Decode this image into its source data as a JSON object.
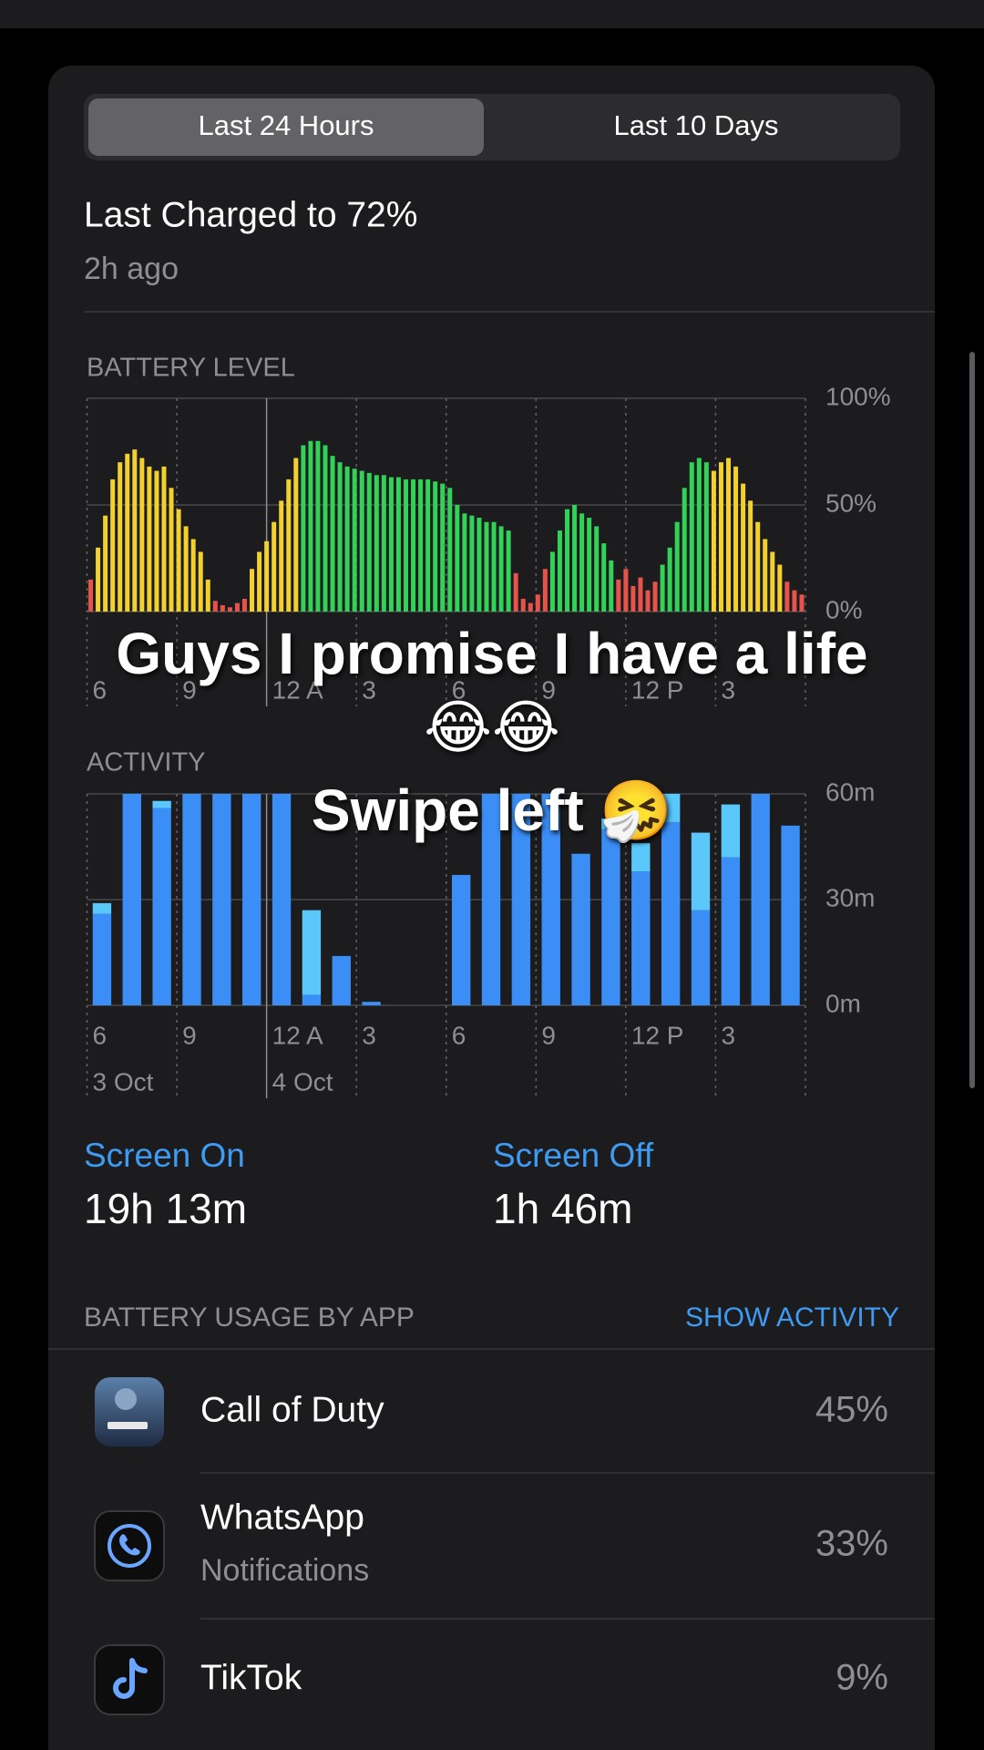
{
  "tabs": [
    {
      "label": "Last 24 Hours",
      "selected": true
    },
    {
      "label": "Last 10 Days",
      "selected": false
    }
  ],
  "last_charged": {
    "title": "Last Charged to 72%",
    "time": "2h ago"
  },
  "overlay": {
    "line1": "Guys I promise I have a life",
    "line2": "😂😂",
    "line3": "Swipe left 🤧"
  },
  "chart_data": [
    {
      "type": "bar",
      "title": "BATTERY LEVEL",
      "ylim": [
        0,
        100
      ],
      "yticks": [
        {
          "value": 100,
          "label": "100%"
        },
        {
          "value": 50,
          "label": "50%"
        },
        {
          "value": 0,
          "label": "0%"
        }
      ],
      "x_labels": [
        "6",
        "9",
        "12 A",
        "3",
        "6",
        "9",
        "12 P",
        "3"
      ],
      "palette": {
        "r": "#e5534b",
        "y": "#f2d12e",
        "g": "#32d158"
      },
      "bar_colors": [
        "r",
        "y",
        "y",
        "y",
        "y",
        "y",
        "y",
        "y",
        "y",
        "y",
        "y",
        "y",
        "y",
        "y",
        "y",
        "y",
        "y",
        "r",
        "r",
        "r",
        "r",
        "r",
        "y",
        "y",
        "y",
        "y",
        "y",
        "y",
        "y",
        "g",
        "g",
        "g",
        "g",
        "g",
        "g",
        "g",
        "g",
        "g",
        "g",
        "g",
        "g",
        "g",
        "g",
        "g",
        "g",
        "g",
        "g",
        "g",
        "g",
        "g",
        "g",
        "g",
        "g",
        "g",
        "g",
        "g",
        "g",
        "g",
        "r",
        "r",
        "r",
        "r",
        "r",
        "g",
        "g",
        "g",
        "g",
        "g",
        "g",
        "g",
        "g",
        "g",
        "r",
        "r",
        "r",
        "r",
        "r",
        "r",
        "g",
        "g",
        "g",
        "g",
        "g",
        "g",
        "g",
        "y",
        "y",
        "y",
        "y",
        "y",
        "y",
        "y",
        "y",
        "y",
        "y",
        "r",
        "r",
        "r"
      ],
      "values": [
        15,
        30,
        45,
        62,
        70,
        74,
        76,
        72,
        68,
        66,
        68,
        58,
        48,
        40,
        34,
        28,
        15,
        5,
        3,
        2,
        4,
        6,
        20,
        28,
        33,
        42,
        52,
        62,
        72,
        78,
        80,
        80,
        78,
        73,
        70,
        68,
        67,
        66,
        65,
        64,
        64,
        63,
        63,
        62,
        62,
        62,
        62,
        61,
        60,
        58,
        50,
        46,
        45,
        44,
        42,
        42,
        40,
        38,
        18,
        6,
        4,
        8,
        20,
        28,
        38,
        48,
        50,
        46,
        44,
        40,
        32,
        24,
        15,
        20,
        12,
        16,
        10,
        14,
        22,
        30,
        42,
        58,
        70,
        72,
        70,
        66,
        70,
        72,
        68,
        60,
        52,
        42,
        34,
        28,
        22,
        14,
        10,
        8
      ]
    },
    {
      "type": "stacked_bar",
      "title": "ACTIVITY",
      "ylim": [
        0,
        60
      ],
      "yticks": [
        {
          "value": 60,
          "label": "60m"
        },
        {
          "value": 30,
          "label": "30m"
        },
        {
          "value": 0,
          "label": "0m"
        }
      ],
      "x_labels": [
        "6",
        "9",
        "12 A",
        "3",
        "6",
        "9",
        "12 P",
        "3"
      ],
      "date_labels": [
        "3 Oct",
        "4 Oct"
      ],
      "series": [
        {
          "name": "Screen On",
          "color": "#3a8ef6",
          "values": [
            26,
            60,
            56,
            60,
            60,
            60,
            60,
            3,
            14,
            1,
            0,
            0,
            37,
            60,
            60,
            60,
            43,
            50,
            38,
            52,
            27,
            42,
            60,
            51
          ]
        },
        {
          "name": "Screen Off",
          "color": "#5ac8fa",
          "values": [
            3,
            0,
            2,
            0,
            0,
            0,
            0,
            24,
            0,
            0,
            0,
            0,
            0,
            0,
            0,
            0,
            0,
            3,
            8,
            8,
            22,
            15,
            0,
            0
          ]
        }
      ]
    }
  ],
  "screen_time": [
    {
      "value": "19h 13m"
    },
    {
      "value": "1h 46m"
    }
  ],
  "usage": {
    "title": "BATTERY USAGE BY APP",
    "action": "SHOW ACTIVITY",
    "apps": [
      {
        "name": "Call of Duty",
        "percent": "45%"
      },
      {
        "name": "WhatsApp",
        "detail": "Notifications",
        "percent": "33%"
      },
      {
        "name": "TikTok",
        "percent": "9%"
      }
    ]
  }
}
